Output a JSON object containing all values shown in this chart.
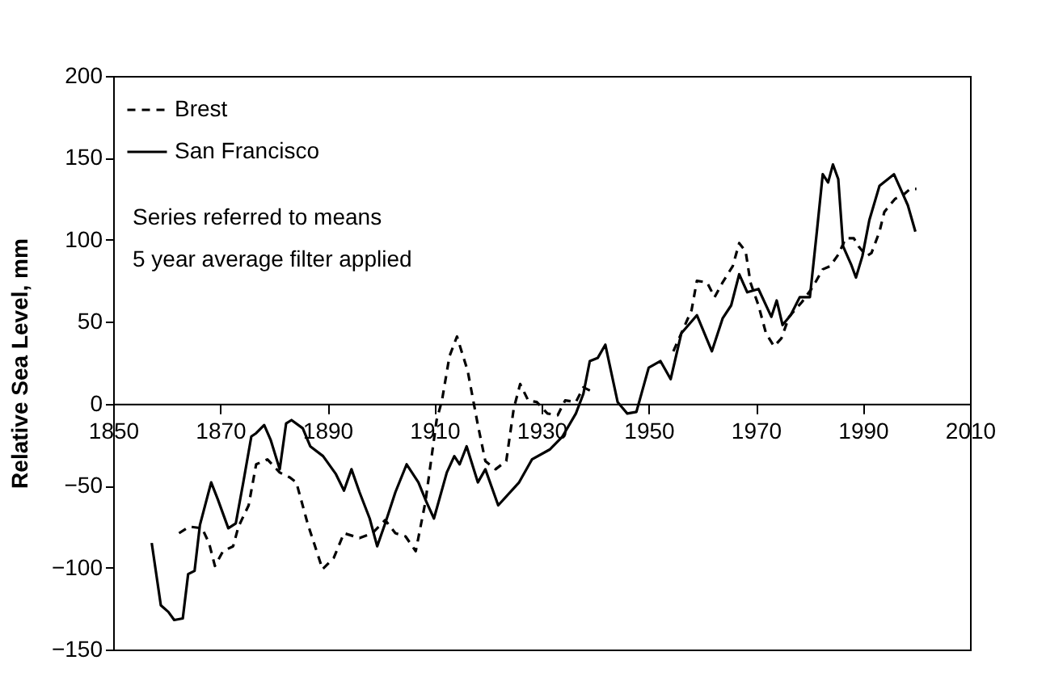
{
  "chart_data": {
    "type": "line",
    "ylabel": "Relative Sea Level, mm",
    "annotations": [
      "Series referred to means",
      "5 year average filter applied"
    ],
    "xlim": [
      1850,
      2010
    ],
    "xticks": [
      1850,
      1870,
      1890,
      1910,
      1930,
      1950,
      1970,
      1990,
      2010
    ],
    "ylim": [
      -150,
      200
    ],
    "yticks": [
      -150,
      -100,
      -50,
      0,
      50,
      100,
      150,
      200
    ],
    "grid": false,
    "legend": "top left",
    "marker": "none",
    "series": [
      {
        "name": "Brest",
        "color": "#000000",
        "line_style": "dashed",
        "x": [
          1862.3,
          1864.2,
          1866.6,
          1867.9,
          1869.0,
          1870.5,
          1872.4,
          1873.4,
          1875.3,
          1876.7,
          1878.8,
          1881.1,
          1883.0,
          1884.2,
          1886.3,
          1889.1,
          1891.2,
          1893.1,
          1896.0,
          1898.4,
          1900.8,
          1902.7,
          1904.6,
          1906.5,
          1908.3,
          1910.4,
          1911.4,
          1912.8,
          1914.2,
          1916.2,
          1918.1,
          1919.5,
          1921.4,
          1923.4,
          1924.8,
          1926.0,
          1927.5,
          1929.1,
          1931.1,
          1933.0,
          1934.4,
          1936.4,
          1937.8,
          1939.7,
          1947.0,
          1954.6,
          1958.0,
          1959.0,
          1960.9,
          1962.3,
          1963.8,
          1965.7,
          1966.9,
          1968.1,
          1969.0,
          1970.5,
          1971.9,
          1973.4,
          1974.8,
          1976.2,
          1978.6,
          1980.6,
          1982.5,
          1983.9,
          1985.4,
          1986.8,
          1988.3,
          1989.2,
          1990.7,
          1991.6,
          1993.1,
          1994.0,
          1996.0,
          1997.4,
          1998.8,
          2000.0
        ],
        "values": [
          -79,
          -75,
          -76,
          -85,
          -99,
          -90,
          -87,
          -75,
          -62,
          -37,
          -34,
          -42,
          -45,
          -48,
          -73,
          -101,
          -94,
          -79,
          -82,
          -79,
          -71,
          -79,
          -81,
          -90,
          -60,
          -10,
          2,
          29,
          41,
          20,
          -13,
          -35,
          -40,
          -35,
          -3,
          12,
          2,
          1,
          -6,
          -7,
          2,
          1,
          10,
          7,
          null,
          32,
          57,
          75,
          74,
          65,
          74,
          84,
          98,
          93,
          74,
          60,
          43,
          35,
          40,
          53,
          62,
          71,
          82,
          84,
          91,
          101,
          101,
          96,
          90,
          92,
          105,
          117,
          125,
          127,
          131,
          131
        ]
      },
      {
        "name": "San Francisco",
        "color": "#000000",
        "line_style": "solid",
        "x": [
          1857.2,
          1858.9,
          1860.3,
          1861.4,
          1863.0,
          1864.0,
          1865.2,
          1866.2,
          1868.3,
          1869.5,
          1871.5,
          1872.9,
          1874.3,
          1875.8,
          1876.7,
          1878.2,
          1879.4,
          1881.1,
          1882.3,
          1883.3,
          1885.4,
          1886.8,
          1889.2,
          1891.6,
          1893.1,
          1894.5,
          1896.0,
          1897.9,
          1899.3,
          1900.8,
          1902.7,
          1904.8,
          1907.0,
          1908.5,
          1909.9,
          1912.3,
          1913.7,
          1914.7,
          1916.0,
          1918.1,
          1919.5,
          1921.9,
          1925.8,
          1928.2,
          1931.5,
          1933.9,
          1936.4,
          1937.8,
          1939.0,
          1940.5,
          1941.9,
          1944.2,
          1946.0,
          1947.7,
          1950.0,
          1952.2,
          1954.1,
          1956.1,
          1959.0,
          1961.8,
          1963.8,
          1965.4,
          1966.9,
          1968.4,
          1970.5,
          1972.9,
          1973.9,
          1975.0,
          1976.5,
          1978.2,
          1980.1,
          1981.4,
          1982.5,
          1983.5,
          1984.4,
          1985.4,
          1986.3,
          1987.8,
          1988.7,
          1989.9,
          1991.2,
          1993.1,
          1995.8,
          1996.9,
          1998.4,
          1999.8
        ],
        "values": [
          -85,
          -123,
          -127,
          -132,
          -131,
          -104,
          -102,
          -74,
          -48,
          -58,
          -76,
          -73,
          -48,
          -20,
          -18,
          -13,
          -22,
          -40,
          -12,
          -10,
          -15,
          -26,
          -32,
          -43,
          -53,
          -40,
          -54,
          -70,
          -87,
          -73,
          -54,
          -37,
          -48,
          -60,
          -70,
          -42,
          -32,
          -37,
          -26,
          -48,
          -40,
          -62,
          -48,
          -34,
          -28,
          -20,
          -6,
          6,
          26,
          28,
          36,
          1,
          -6,
          -5,
          22,
          26,
          15,
          43,
          54,
          32,
          52,
          60,
          79,
          68,
          70,
          53,
          63,
          48,
          54,
          65,
          65,
          105,
          140,
          135,
          146,
          137,
          96,
          85,
          77,
          90,
          112,
          133,
          140,
          132,
          121,
          105
        ]
      }
    ]
  }
}
